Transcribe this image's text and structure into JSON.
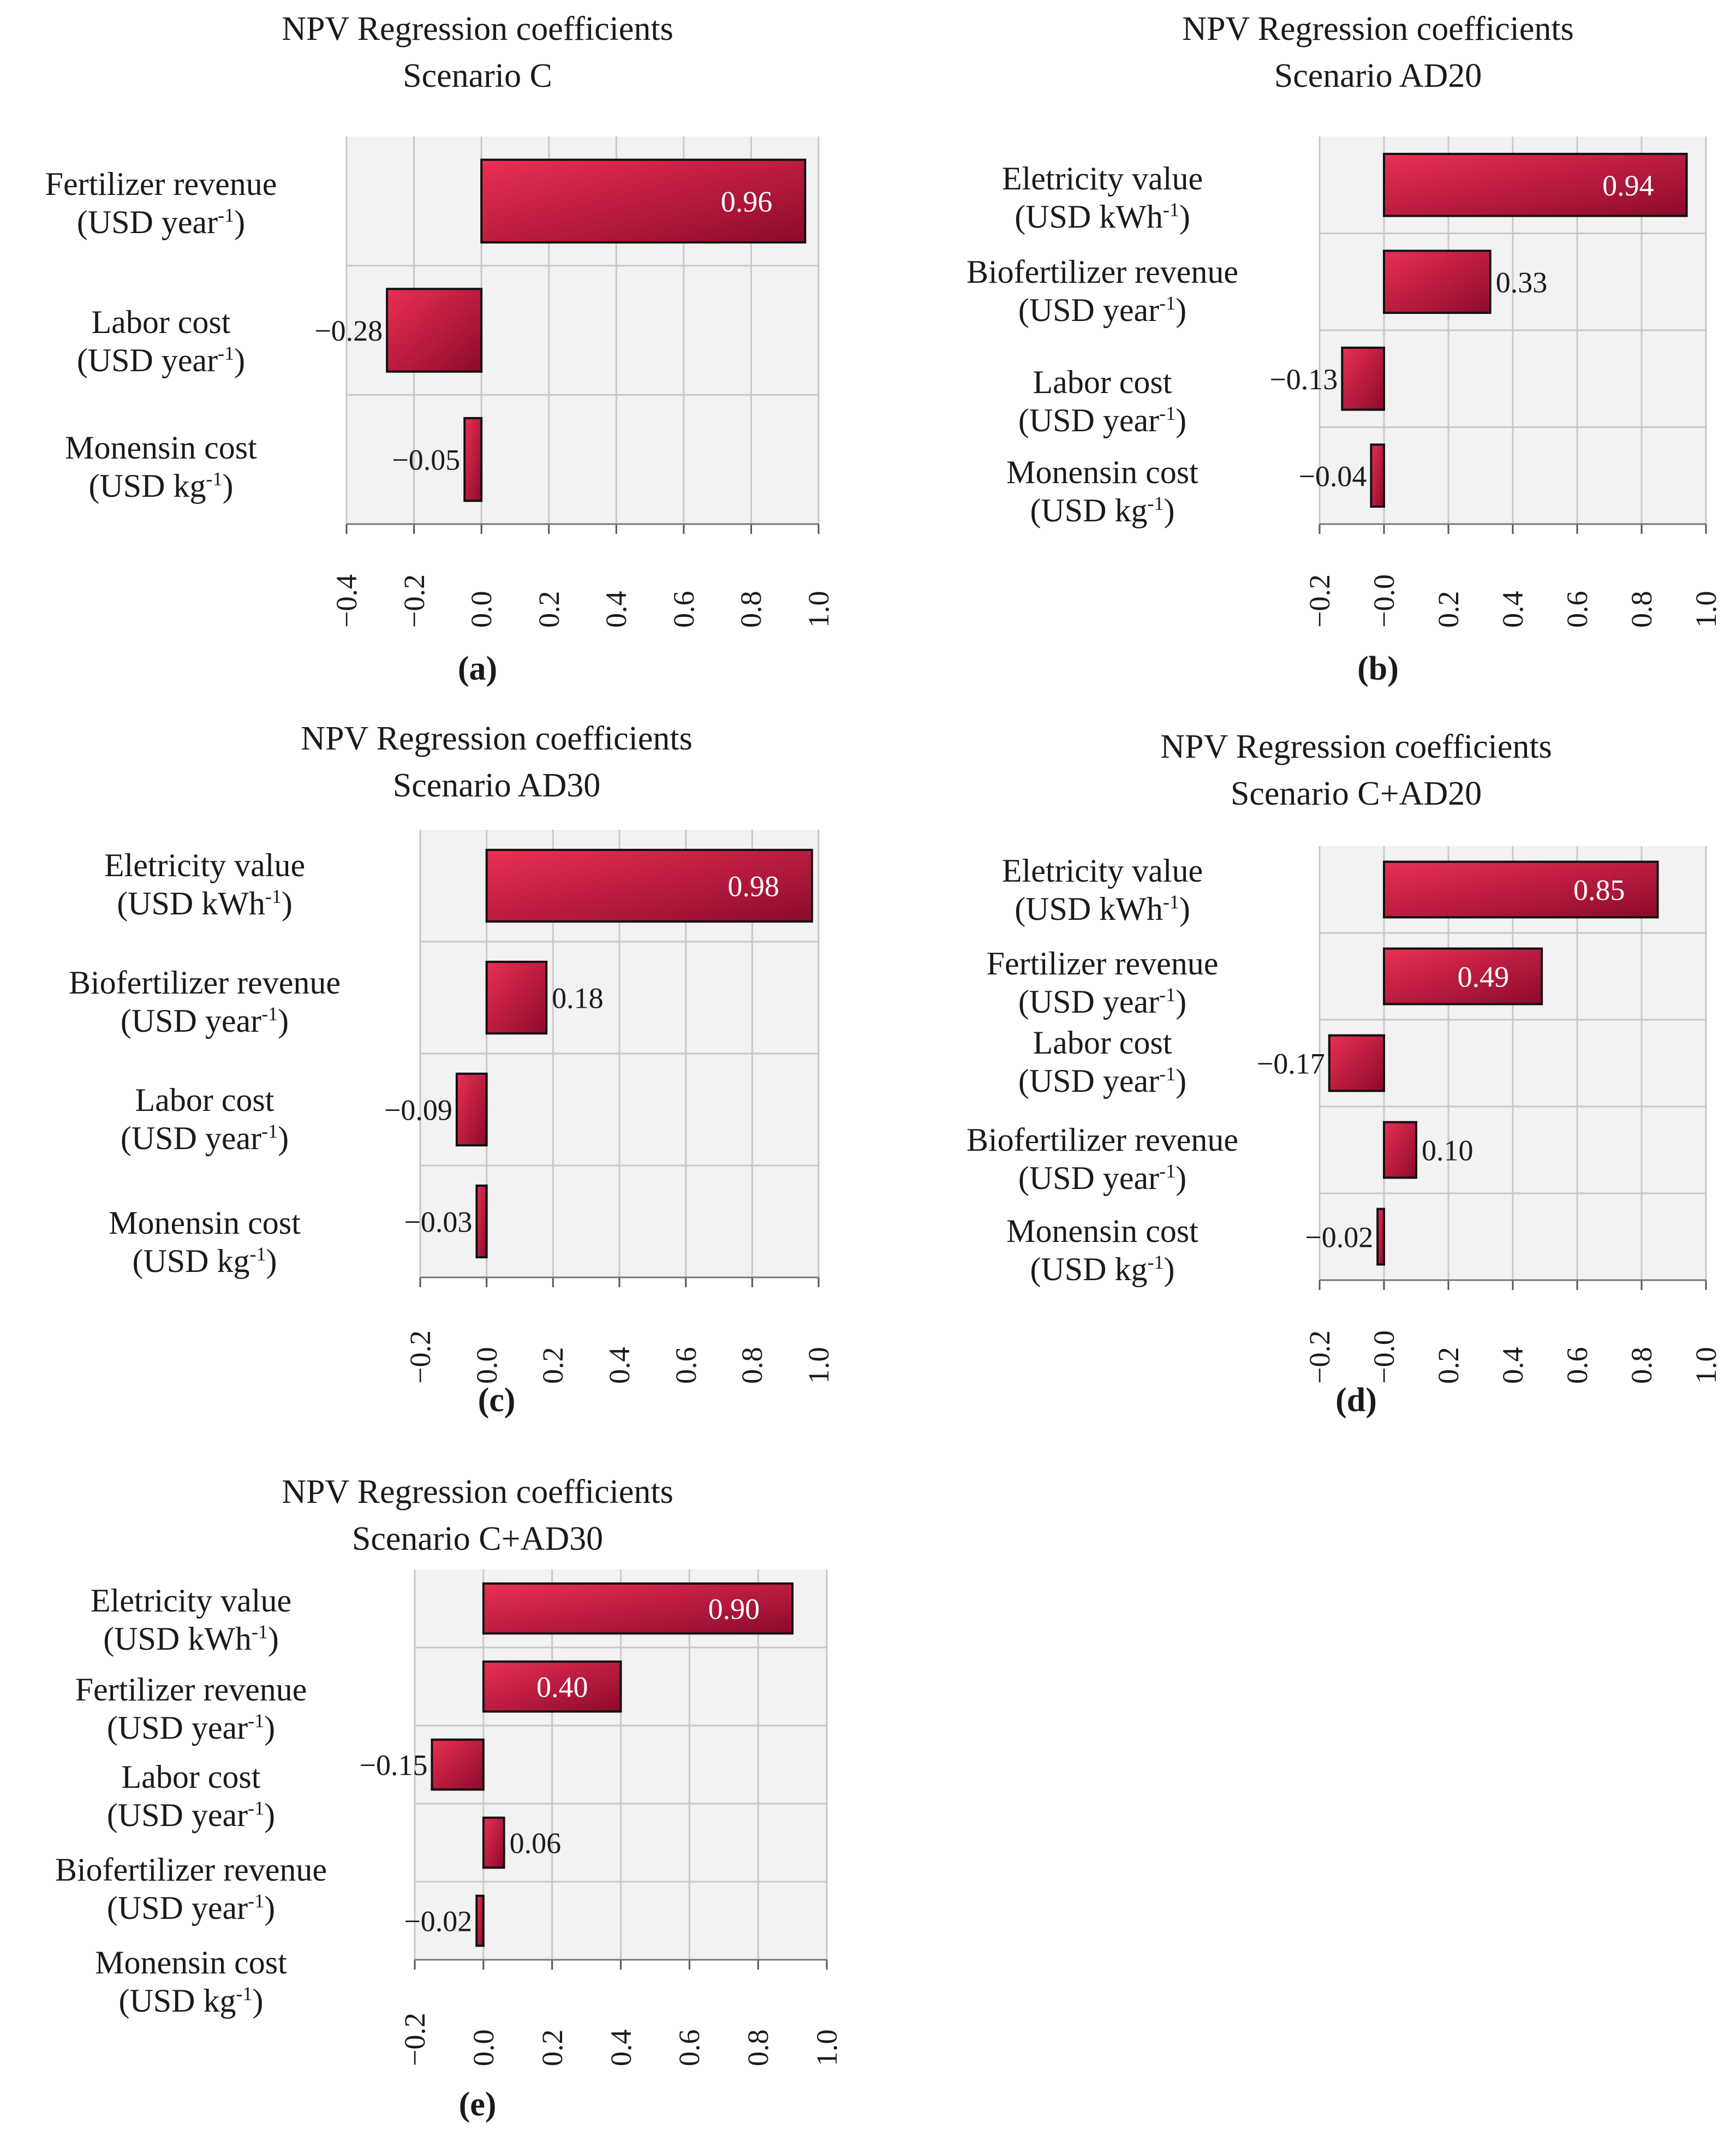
{
  "colors": {
    "bar_light": "#ea2f55",
    "bar_dark": "#8c0a2a",
    "bar_edge": "#111111",
    "grid": "#c8c8c8",
    "plot_bg": "#f2f2f2",
    "label_on_bar": "#ffffff",
    "label_off_bar": "#1a1a1a"
  },
  "chart_data": [
    {
      "id": "a",
      "type": "bar",
      "orientation": "horizontal",
      "title": "NPV Regression coefficients",
      "subtitle": "Scenario C",
      "caption": "(a)",
      "categories": [
        {
          "name": "Fertilizer revenue",
          "unit": "(USD year",
          "sup": "-1",
          "close": ")"
        },
        {
          "name": "Labor cost",
          "unit": "(USD year",
          "sup": "-1",
          "close": ")"
        },
        {
          "name": "Monensin cost",
          "unit": "(USD kg",
          "sup": "-1",
          "close": ")"
        }
      ],
      "values": [
        0.96,
        -0.28,
        -0.05
      ],
      "value_labels": [
        "0.96",
        "−0.28",
        "−0.05"
      ],
      "xlim": [
        -0.4,
        1.0
      ],
      "xticks": [
        "−0.4",
        "−0.2",
        "0.0",
        "0.2",
        "0.4",
        "0.6",
        "0.8",
        "1.0"
      ]
    },
    {
      "id": "b",
      "type": "bar",
      "orientation": "horizontal",
      "title": "NPV Regression coefficients",
      "subtitle": "Scenario AD20",
      "caption": "(b)",
      "categories": [
        {
          "name": "Eletricity value",
          "unit": "(USD kWh",
          "sup": "-1",
          "close": ")"
        },
        {
          "name": "Biofertilizer revenue",
          "unit": "(USD year",
          "sup": "-1",
          "close": ")"
        },
        {
          "name": "Labor cost",
          "unit": "(USD year",
          "sup": "-1",
          "close": ")"
        },
        {
          "name": "Monensin cost",
          "unit": "(USD kg",
          "sup": "-1",
          "close": ")"
        }
      ],
      "values": [
        0.94,
        0.33,
        -0.13,
        -0.04
      ],
      "value_labels": [
        "0.94",
        "0.33",
        "−0.13",
        "−0.04"
      ],
      "xlim": [
        -0.2,
        1.0
      ],
      "xticks": [
        "−0.2",
        "−0.0",
        "0.2",
        "0.4",
        "0.6",
        "0.8",
        "1.0"
      ]
    },
    {
      "id": "c",
      "type": "bar",
      "orientation": "horizontal",
      "title": "NPV Regression coefficients",
      "subtitle": "Scenario AD30",
      "caption": "(c)",
      "categories": [
        {
          "name": "Eletricity value",
          "unit": "(USD kWh",
          "sup": "-1",
          "close": ")"
        },
        {
          "name": "Biofertilizer revenue",
          "unit": "(USD year",
          "sup": "-1",
          "close": ")"
        },
        {
          "name": "Labor cost",
          "unit": "(USD year",
          "sup": "-1",
          "close": ")"
        },
        {
          "name": "Monensin cost",
          "unit": "(USD kg",
          "sup": "-1",
          "close": ")"
        }
      ],
      "values": [
        0.98,
        0.18,
        -0.09,
        -0.03
      ],
      "value_labels": [
        "0.98",
        "0.18",
        "−0.09",
        "−0.03"
      ],
      "xlim": [
        -0.2,
        1.0
      ],
      "xticks": [
        "−0.2",
        "0.0",
        "0.2",
        "0.4",
        "0.6",
        "0.8",
        "1.0"
      ]
    },
    {
      "id": "d",
      "type": "bar",
      "orientation": "horizontal",
      "title": "NPV Regression coefficients",
      "subtitle": "Scenario C+AD20",
      "caption": "(d)",
      "categories": [
        {
          "name": "Eletricity value",
          "unit": "(USD kWh",
          "sup": "-1",
          "close": ")"
        },
        {
          "name": "Fertilizer revenue",
          "unit": "(USD year",
          "sup": "-1",
          "close": ")"
        },
        {
          "name": "Labor cost",
          "unit": "(USD year",
          "sup": "-1",
          "close": ")"
        },
        {
          "name": "Biofertilizer revenue",
          "unit": "(USD year",
          "sup": "-1",
          "close": ")"
        },
        {
          "name": "Monensin cost",
          "unit": "(USD kg",
          "sup": "-1",
          "close": ")"
        }
      ],
      "values": [
        0.85,
        0.49,
        -0.17,
        0.1,
        -0.02
      ],
      "value_labels": [
        "0.85",
        "0.49",
        "−0.17",
        "0.10",
        "−0.02"
      ],
      "xlim": [
        -0.2,
        1.0
      ],
      "xticks": [
        "−0.2",
        "−0.0",
        "0.2",
        "0.4",
        "0.6",
        "0.8",
        "1.0"
      ]
    },
    {
      "id": "e",
      "type": "bar",
      "orientation": "horizontal",
      "title": "NPV Regression coefficients",
      "subtitle": "Scenario C+AD30",
      "caption": "(e)",
      "categories": [
        {
          "name": "Eletricity value",
          "unit": "(USD kWh",
          "sup": "-1",
          "close": ")"
        },
        {
          "name": "Fertilizer revenue",
          "unit": "(USD year",
          "sup": "-1",
          "close": ")"
        },
        {
          "name": "Labor cost",
          "unit": "(USD year",
          "sup": "-1",
          "close": ")"
        },
        {
          "name": "Biofertilizer revenue",
          "unit": "(USD year",
          "sup": "-1",
          "close": ")"
        },
        {
          "name": "Monensin cost",
          "unit": "(USD kg",
          "sup": "-1",
          "close": ")"
        }
      ],
      "values": [
        0.9,
        0.4,
        -0.15,
        0.06,
        -0.02
      ],
      "value_labels": [
        "0.90",
        "0.40",
        "−0.15",
        "0.06",
        "−0.02"
      ],
      "xlim": [
        -0.2,
        1.0
      ],
      "xticks": [
        "−0.2",
        "0.0",
        "0.2",
        "0.4",
        "0.6",
        "0.8",
        "1.0"
      ]
    }
  ]
}
